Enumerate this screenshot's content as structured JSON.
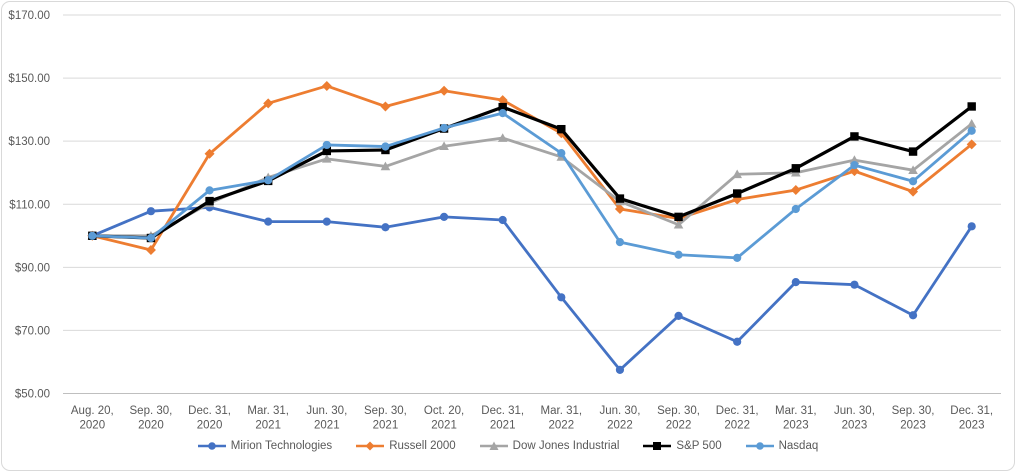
{
  "chart_data": {
    "type": "line",
    "title": "",
    "y_axis": {
      "tick_labels": [
        "$170.00",
        "$150.00",
        "$130.00",
        "$110.00",
        "$90.00",
        "$70.00",
        "$50.00"
      ],
      "tick_values": [
        170,
        150,
        130,
        110,
        90,
        70,
        50
      ],
      "min": 50,
      "max": 170,
      "grid": true
    },
    "x_axis": {
      "categories": [
        [
          "Aug. 20,",
          "2020"
        ],
        [
          "Sep. 30,",
          "2020"
        ],
        [
          "Dec. 31,",
          "2020"
        ],
        [
          "Mar. 31,",
          "2021"
        ],
        [
          "Jun. 30,",
          "2021"
        ],
        [
          "Sep. 30,",
          "2021"
        ],
        [
          "Oct. 20,",
          "2021"
        ],
        [
          "Dec. 31,",
          "2021"
        ],
        [
          "Mar. 31,",
          "2022"
        ],
        [
          "Jun. 30,",
          "2022"
        ],
        [
          "Sep. 30,",
          "2022"
        ],
        [
          "Dec. 31,",
          "2022"
        ],
        [
          "Mar. 31,",
          "2023"
        ],
        [
          "Jun. 30,",
          "2023"
        ],
        [
          "Sep. 30,",
          "2023"
        ],
        [
          "Dec. 31,",
          "2023"
        ]
      ]
    },
    "series": [
      {
        "name": "Mirion Technologies",
        "color": "#4472C4",
        "marker": "circle",
        "values": [
          100,
          107.8,
          109,
          104.5,
          104.5,
          102.7,
          106,
          105,
          80.5,
          57.5,
          74.6,
          66.4,
          85.3,
          84.5,
          74.8,
          103
        ]
      },
      {
        "name": "Russell 2000",
        "color": "#ED7D31",
        "marker": "diamond",
        "values": [
          100,
          95.5,
          126,
          142,
          147.5,
          141,
          146,
          143,
          132.5,
          108.5,
          105.5,
          111.5,
          114.5,
          120.5,
          114,
          129
        ]
      },
      {
        "name": "Dow Jones Industrial",
        "color": "#A5A5A5",
        "marker": "triangle",
        "values": [
          100,
          100,
          110.3,
          118.5,
          124.4,
          122,
          128.4,
          131,
          125,
          110.9,
          103.5,
          119.5,
          120,
          124,
          120.8,
          135.5
        ]
      },
      {
        "name": "S&P 500",
        "color": "#000000",
        "marker": "square",
        "values": [
          100,
          99.3,
          111,
          117.4,
          126.9,
          127.2,
          134,
          140.8,
          133.8,
          111.8,
          106,
          113.4,
          121.4,
          131.5,
          126.7,
          141
        ]
      },
      {
        "name": "Nasdaq",
        "color": "#5B9BD5",
        "marker": "circle",
        "values": [
          100,
          99.3,
          114.4,
          117.6,
          128.8,
          128.3,
          134.2,
          138.9,
          126.2,
          98,
          94,
          93,
          108.5,
          122.4,
          117.3,
          133.3
        ]
      }
    ],
    "legend_position": "bottom",
    "grid": true
  },
  "styles": {
    "grid_color": "#D9D9D9",
    "axis_line_color": "#BFBFBF",
    "label_color": "#595959",
    "frame_border_color": "#D9D9D9",
    "background": "#FFFFFF"
  }
}
